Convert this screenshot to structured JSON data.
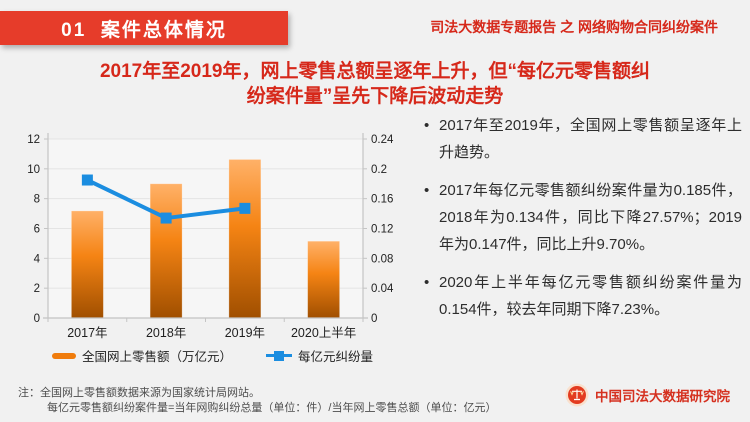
{
  "header": {
    "section_badge": "01  案件总体情况",
    "report_title": "司法大数据专题报告 之 网络购物合同纠纷案件"
  },
  "title": {
    "line1": "2017年至2019年，网上零售总额呈逐年上升，但“每亿元零售额纠",
    "line2": "纷案件量”呈先下降后波动走势"
  },
  "chart_data": {
    "type": "bar",
    "subtype": "bar+line dual axis",
    "categories": [
      "2017年",
      "2018年",
      "2019年",
      "2020上半年"
    ],
    "series": [
      {
        "name": "全国网上零售额（万亿元）",
        "type": "bar",
        "axis": "left",
        "values": [
          7.18,
          9.0,
          10.63,
          5.15
        ],
        "color_top": "#ffb168",
        "color_mid": "#f58414",
        "color_bottom": "#a04f00"
      },
      {
        "name": "每亿元纠纷量",
        "type": "line",
        "axis": "right",
        "values": [
          0.185,
          0.134,
          0.147,
          null
        ],
        "color": "#1b8de0"
      }
    ],
    "left_axis": {
      "ticks": [
        0,
        2,
        4,
        6,
        8,
        10,
        12
      ],
      "max": 12
    },
    "right_axis": {
      "ticks": [
        0,
        0.04,
        0.08,
        0.12,
        0.16,
        0.2,
        0.24
      ],
      "max": 0.24
    },
    "grid": true,
    "legend_position": "bottom"
  },
  "bullets": {
    "marker": "•",
    "items": [
      "2017年至2019年，全国网上零售额呈逐年上升趋势。",
      "2017年每亿元零售额纠纷案件量为0.185件，2018年为0.134件，同比下降27.57%；2019年为0.147件，同比上升9.70%。",
      "2020年上半年每亿元零售额纠纷案件量为0.154件，较去年同期下降7.23%。"
    ]
  },
  "notes": {
    "line1": "注：全国网上零售额数据来源为国家统计局网站。",
    "line2": "每亿元零售额纠纷案件量=当年网购纠纷总量（单位：件）/当年网上零售总额（单位：亿元）"
  },
  "footer": {
    "org": "中国司法大数据研究院"
  },
  "colors": {
    "banner_red": "#e63c2a",
    "accent_red": "#d6281a",
    "bar_orange": "#f07c0c",
    "line_blue": "#1b8de0",
    "grid_gray": "#e4e4e4",
    "axis_gray": "#c4c4c4"
  }
}
